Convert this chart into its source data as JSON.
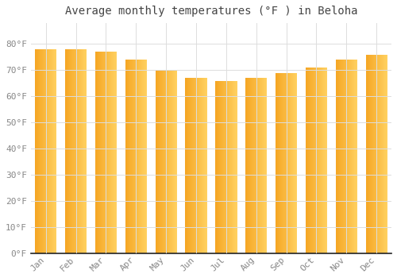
{
  "title": "Average monthly temperatures (°F ) in Beloha",
  "months": [
    "Jan",
    "Feb",
    "Mar",
    "Apr",
    "May",
    "Jun",
    "Jul",
    "Aug",
    "Sep",
    "Oct",
    "Nov",
    "Dec"
  ],
  "values": [
    78,
    78,
    77,
    74,
    70,
    67,
    66,
    67,
    69,
    71,
    74,
    76
  ],
  "bar_color_dark": "#F5A623",
  "bar_color_light": "#FFD060",
  "background_color": "#FFFFFF",
  "grid_color": "#DDDDDD",
  "ylim": [
    0,
    88
  ],
  "yticks": [
    0,
    10,
    20,
    30,
    40,
    50,
    60,
    70,
    80
  ],
  "ytick_labels": [
    "0°F",
    "10°F",
    "20°F",
    "30°F",
    "40°F",
    "50°F",
    "60°F",
    "70°F",
    "80°F"
  ],
  "title_fontsize": 10,
  "tick_fontsize": 8,
  "bar_width": 0.72,
  "title_color": "#444444",
  "tick_color": "#888888",
  "spine_color": "#222222"
}
